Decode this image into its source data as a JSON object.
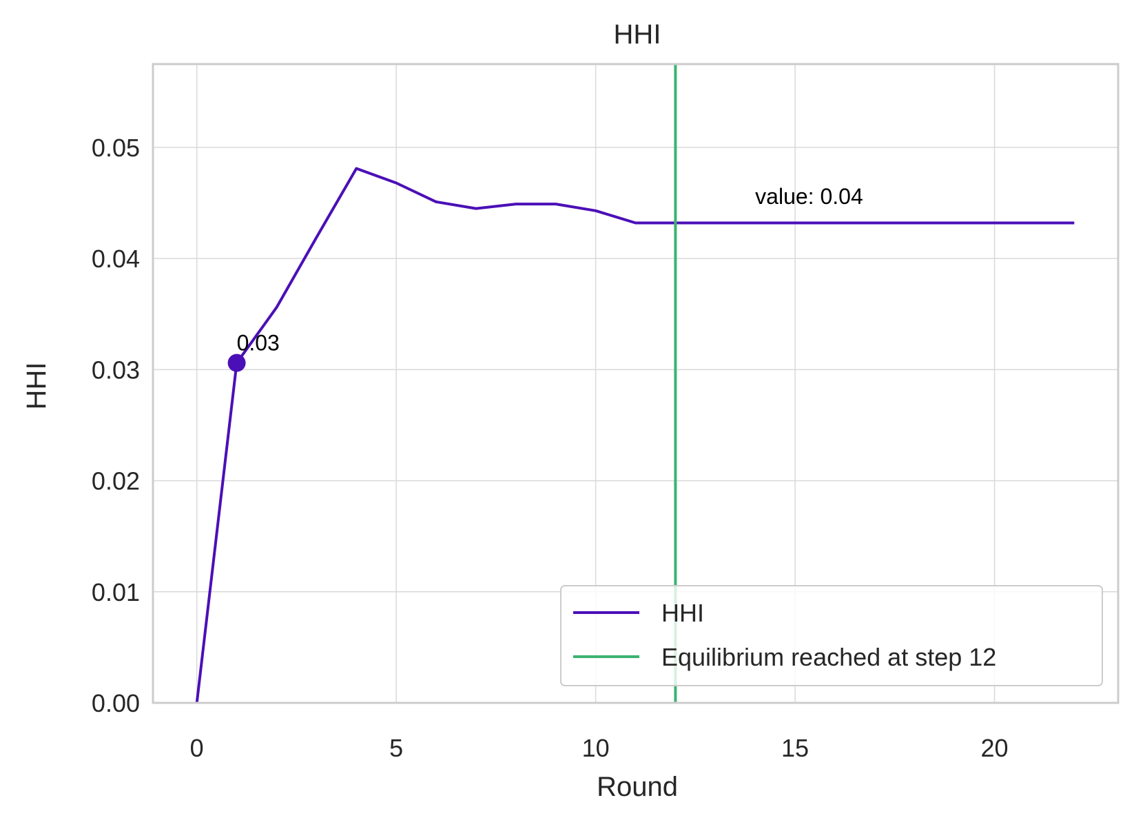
{
  "chart_data": {
    "type": "line",
    "title": "HHI",
    "xlabel": "Round",
    "ylabel": "HHI",
    "xlim": [
      -1.1,
      23.1
    ],
    "ylim": [
      0,
      0.0575
    ],
    "xticks": [
      0,
      5,
      10,
      15,
      20
    ],
    "xtick_labels": [
      "0",
      "5",
      "10",
      "15",
      "20"
    ],
    "yticks": [
      0,
      0.01,
      0.02,
      0.03,
      0.04,
      0.05
    ],
    "ytick_labels": [
      "0.00",
      "0.01",
      "0.02",
      "0.03",
      "0.04",
      "0.05"
    ],
    "grid": true,
    "legend_position": "lower-right",
    "series": [
      {
        "name": "HHI",
        "color": "#4b0fb7",
        "x": [
          0,
          1,
          2,
          3,
          4,
          5,
          6,
          7,
          8,
          9,
          10,
          11,
          12,
          13,
          14,
          15,
          16,
          17,
          18,
          19,
          20,
          21,
          22
        ],
        "y": [
          0.0,
          0.0306,
          0.0356,
          0.0419,
          0.0481,
          0.0468,
          0.0451,
          0.0445,
          0.0449,
          0.0449,
          0.0443,
          0.0432,
          0.0432,
          0.0432,
          0.0432,
          0.0432,
          0.0432,
          0.0432,
          0.0432,
          0.0432,
          0.0432,
          0.0432,
          0.0432
        ]
      }
    ],
    "highlight_point": {
      "x": 1,
      "y": 0.0306,
      "label": "0.03"
    },
    "vline": {
      "x": 12,
      "color": "#3cb371",
      "label": "Equilibrium reached at step 12"
    },
    "annotations": [
      {
        "text": "value: 0.04",
        "x": 14,
        "y": 0.0449
      }
    ]
  }
}
